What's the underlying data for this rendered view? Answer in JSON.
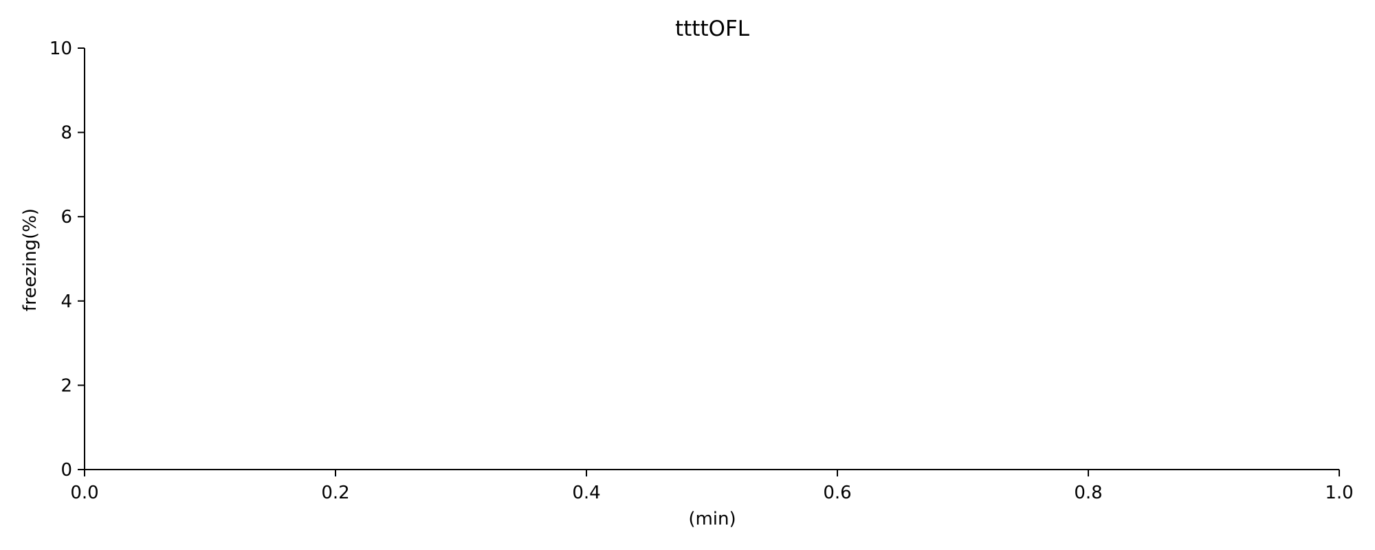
{
  "chart_data": {
    "type": "line",
    "title": "ttttOFL",
    "xlabel": "(min)",
    "ylabel": "freezing(%)",
    "xlim": [
      0.0,
      1.0
    ],
    "ylim": [
      0,
      10
    ],
    "x_ticks": [
      0.0,
      0.2,
      0.4,
      0.6,
      0.8,
      1.0
    ],
    "x_tick_labels": [
      "0.0",
      "0.2",
      "0.4",
      "0.6",
      "0.8",
      "1.0"
    ],
    "y_ticks": [
      0,
      2,
      4,
      6,
      8,
      10
    ],
    "y_tick_labels": [
      "0",
      "2",
      "4",
      "6",
      "8",
      "10"
    ],
    "series": [],
    "grid": false,
    "legend": "none",
    "spines": [
      "left",
      "bottom"
    ],
    "colors": {
      "axis": "#000000",
      "background": "#ffffff"
    }
  }
}
